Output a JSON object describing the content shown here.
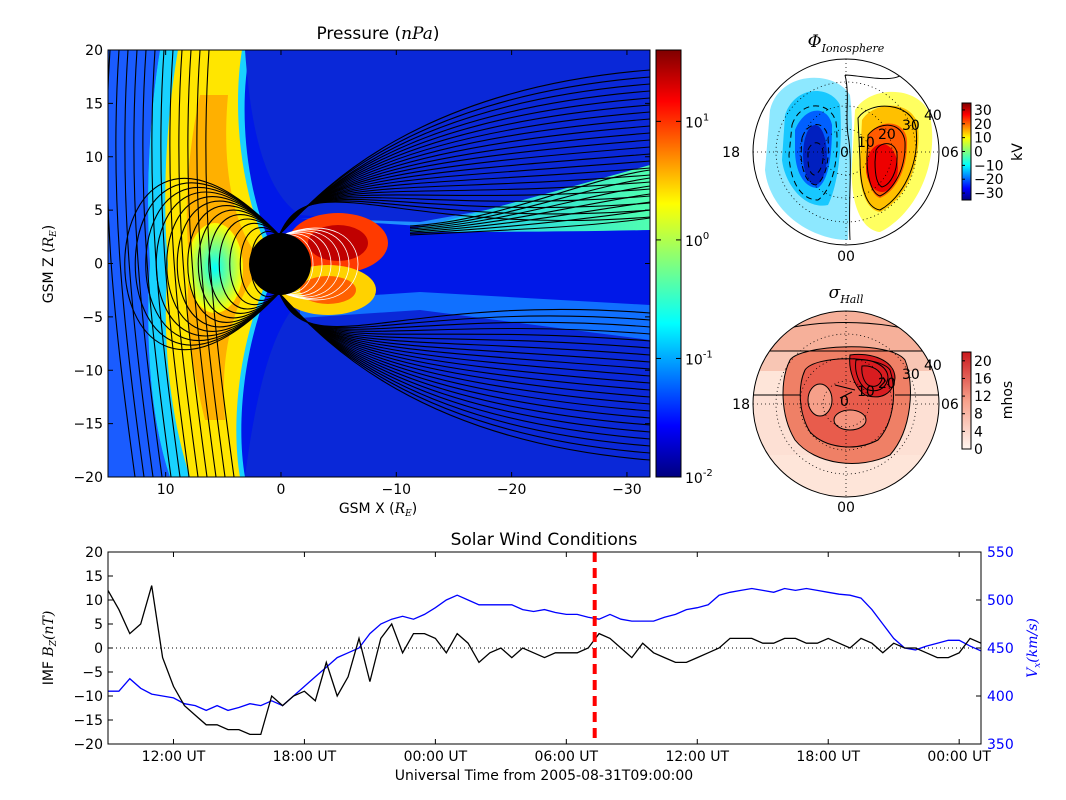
{
  "chart_data": [
    {
      "type": "heatmap",
      "title": "Pressure (nPa)",
      "title_main": "Pressure (",
      "title_unit": "nPa",
      "title_close": ")",
      "xlabel_main": "GSM X (",
      "xlabel_unit": "R",
      "xlabel_sub": "E",
      "xlabel_close": ")",
      "ylabel_main": "GSM Z (",
      "ylabel_unit": "R",
      "ylabel_sub": "E",
      "ylabel_close": ")",
      "xlim": [
        15,
        -32
      ],
      "ylim": [
        -20,
        20
      ],
      "x_ticks": [
        10,
        0,
        -10,
        -20,
        -30
      ],
      "x_tick_labels": [
        "10",
        "0",
        "−10",
        "−20",
        "−30"
      ],
      "y_ticks": [
        20,
        15,
        10,
        5,
        0,
        -5,
        -10,
        -15,
        -20
      ],
      "y_tick_labels": [
        "20",
        "15",
        "10",
        "5",
        "0",
        "−5",
        "−10",
        "−15",
        "−20"
      ],
      "colorbar": {
        "scale": "log",
        "range": [
          0.01,
          40
        ],
        "ticks": [
          {
            "value": 10,
            "base": "10",
            "exp": "1"
          },
          {
            "value": 1,
            "base": "10",
            "exp": "0"
          },
          {
            "value": 0.1,
            "base": "10",
            "exp": "-1"
          },
          {
            "value": 0.01,
            "base": "10",
            "exp": "-2"
          }
        ]
      },
      "colormap": "jet"
    },
    {
      "type": "heatmap",
      "projection": "polar",
      "title_sym": "Φ",
      "title_sub": "Ionosphere",
      "clock_labels": {
        "left": "18",
        "right": "06",
        "bottom": "00"
      },
      "latitude_labels": [
        "40",
        "30",
        "20",
        "10",
        "0"
      ],
      "colorbar": {
        "label": "kV",
        "range": [
          -35,
          35
        ],
        "ticks": [
          30,
          20,
          10,
          0,
          -10,
          -20,
          -30
        ],
        "tick_labels": [
          "30",
          "20",
          "10",
          "0",
          "−10",
          "−20",
          "−30"
        ]
      },
      "colormap": "jet"
    },
    {
      "type": "heatmap",
      "projection": "polar",
      "title_sym": "σ",
      "title_sub": "Hall",
      "clock_labels": {
        "left": "18",
        "right": "06",
        "bottom": "00"
      },
      "latitude_labels": [
        "40",
        "30",
        "20",
        "10",
        "0"
      ],
      "colorbar": {
        "label": "mhos",
        "range": [
          0,
          22
        ],
        "ticks": [
          20,
          16,
          12,
          8,
          4,
          0
        ],
        "tick_labels": [
          "20",
          "16",
          "12",
          "8",
          "4",
          "0"
        ]
      },
      "colormap": "reds"
    },
    {
      "type": "line",
      "title": "Solar Wind Conditions",
      "xlabel": "Universal Time from 2005-08-31T09:00:00",
      "x_tick_labels": [
        "12:00 UT",
        "18:00 UT",
        "00:00 UT",
        "06:00 UT",
        "12:00 UT",
        "18:00 UT",
        "00:00 UT"
      ],
      "x_ticks_hours": [
        3,
        9,
        15,
        21,
        27,
        33,
        39
      ],
      "xlim_hours": [
        0,
        40
      ],
      "current_time_hours": 22.3,
      "left_axis": {
        "label_main": "IMF ",
        "label_var": "B",
        "label_sub": "Z",
        "label_unit": "(nT)",
        "ylim": [
          -20,
          20
        ],
        "ticks": [
          20,
          15,
          10,
          5,
          0,
          -5,
          -10,
          -15,
          -20
        ],
        "tick_labels": [
          "20",
          "15",
          "10",
          "5",
          "0",
          "−5",
          "−10",
          "−15",
          "−20"
        ]
      },
      "right_axis": {
        "label_var": "V",
        "label_sub": "x",
        "label_unit": "(km/s)",
        "ylim": [
          350,
          550
        ],
        "ticks": [
          550,
          500,
          450,
          400,
          350
        ],
        "tick_labels": [
          "550",
          "500",
          "450",
          "400",
          "350"
        ]
      },
      "series": [
        {
          "name": "Bz",
          "color": "#000000",
          "hours": [
            0,
            0.5,
            1,
            1.5,
            2,
            2.5,
            3,
            3.5,
            4,
            4.5,
            5,
            5.5,
            6,
            6.5,
            7,
            7.5,
            8,
            8.5,
            9,
            9.5,
            10,
            10.5,
            11,
            11.5,
            12,
            12.5,
            13,
            13.5,
            14,
            14.5,
            15,
            15.5,
            16,
            16.5,
            17,
            17.5,
            18,
            18.5,
            19,
            19.5,
            20,
            20.5,
            21,
            21.5,
            22,
            22.5,
            23,
            23.5,
            24,
            24.5,
            25,
            25.5,
            26,
            26.5,
            27,
            27.5,
            28,
            28.5,
            29,
            29.5,
            30,
            30.5,
            31,
            31.5,
            32,
            32.5,
            33,
            33.5,
            34,
            34.5,
            35,
            35.5,
            36,
            36.5,
            37,
            37.5,
            38,
            38.5,
            39,
            39.5,
            40
          ],
          "values": [
            12,
            8,
            3,
            5,
            13,
            -2,
            -8,
            -12,
            -14,
            -16,
            -16,
            -17,
            -17,
            -18,
            -18,
            -10,
            -12,
            -10,
            -9,
            -11,
            -3,
            -10,
            -6,
            2,
            -7,
            2,
            5,
            -1,
            3,
            3,
            2,
            -1,
            3,
            1,
            -3,
            -1,
            0,
            -2,
            0,
            -1,
            -2,
            -1,
            -1,
            -1,
            0,
            3,
            2,
            0,
            -2,
            1,
            -1,
            -2,
            -3,
            -3,
            -2,
            -1,
            0,
            2,
            2,
            2,
            1,
            1,
            2,
            2,
            1,
            1,
            2,
            1,
            0,
            2,
            1,
            -1,
            1,
            0,
            0,
            -1,
            -2,
            -2,
            -1,
            2,
            1
          ]
        },
        {
          "name": "Vx",
          "color": "#0000ff",
          "hours": [
            0,
            0.5,
            1,
            1.5,
            2,
            2.5,
            3,
            3.5,
            4,
            4.5,
            5,
            5.5,
            6,
            6.5,
            7,
            7.5,
            8,
            8.5,
            9,
            9.5,
            10,
            10.5,
            11,
            11.5,
            12,
            12.5,
            13,
            13.5,
            14,
            14.5,
            15,
            15.5,
            16,
            16.5,
            17,
            17.5,
            18,
            18.5,
            19,
            19.5,
            20,
            20.5,
            21,
            21.5,
            22,
            22.5,
            23,
            23.5,
            24,
            24.5,
            25,
            25.5,
            26,
            26.5,
            27,
            27.5,
            28,
            28.5,
            29,
            29.5,
            30,
            30.5,
            31,
            31.5,
            32,
            32.5,
            33,
            33.5,
            34,
            34.5,
            35,
            35.5,
            36,
            36.5,
            37,
            37.5,
            38,
            38.5,
            39,
            39.5,
            40
          ],
          "values": [
            405,
            405,
            418,
            408,
            402,
            400,
            398,
            392,
            390,
            385,
            390,
            385,
            388,
            392,
            390,
            395,
            390,
            400,
            410,
            420,
            430,
            440,
            445,
            450,
            465,
            475,
            480,
            483,
            480,
            485,
            492,
            500,
            505,
            500,
            495,
            495,
            495,
            495,
            490,
            488,
            490,
            487,
            485,
            485,
            482,
            480,
            485,
            480,
            478,
            478,
            478,
            482,
            485,
            490,
            492,
            495,
            505,
            508,
            510,
            512,
            510,
            508,
            512,
            510,
            512,
            510,
            508,
            506,
            505,
            502,
            490,
            475,
            460,
            450,
            448,
            452,
            455,
            458,
            458,
            452,
            447
          ]
        }
      ]
    }
  ]
}
